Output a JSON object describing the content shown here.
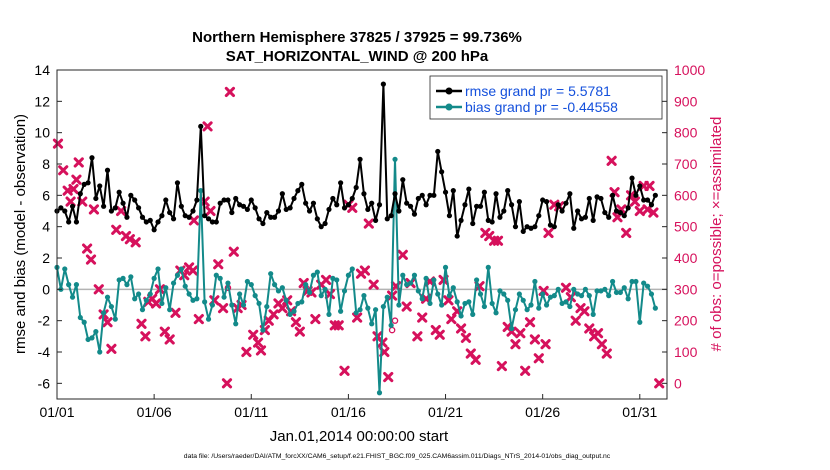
{
  "chart_data": {
    "type": "line",
    "title": "Northern Hemisphere 37825 / 37925 = 99.736%",
    "subtitle": "SAT_HORIZONTAL_WIND @ 200 hPa",
    "xlabel": "Jan.01,2014 00:00:00 start",
    "ylabel_left": "rmse and bias (model - observation)",
    "ylabel_right": "# of obs: o=possible; ×=assimilated",
    "footer": "data file: /Users/raeder/DAI/ATM_forcXX/CAM6_setup/f.e21.FHIST_BGC.f09_025.CAM6assim.011/Diags_NTrS_2014-01/obs_diag_output.nc",
    "x_tick_labels": [
      "01/01",
      "01/06",
      "01/11",
      "01/16",
      "01/21",
      "01/26",
      "01/31"
    ],
    "x_tick_days": [
      1,
      6,
      11,
      16,
      21,
      26,
      31
    ],
    "xlim": [
      1,
      32.4
    ],
    "ylim_left": [
      -7,
      14
    ],
    "yticks_left": [
      -6,
      -4,
      -2,
      0,
      2,
      4,
      6,
      8,
      10,
      12,
      14
    ],
    "ylim_right": [
      -50,
      1000
    ],
    "yticks_right": [
      0,
      100,
      200,
      300,
      400,
      500,
      600,
      700,
      800,
      900,
      1000
    ],
    "colors": {
      "rmse": "#000000",
      "bias": "#138a8a",
      "obs": "#d6115c",
      "zero_line": "#b3b3b3",
      "legend_text": "#1450dc"
    },
    "legend": [
      "rmse grand pr = 5.5781",
      "bias grand pr = -0.44558"
    ],
    "series": [
      {
        "name": "rmse grand pr = 5.5781",
        "values": [
          5.0,
          5.2,
          5.0,
          4.3,
          5.3,
          4.3,
          6.1,
          6.7,
          6.8,
          8.4,
          5.8,
          6.6,
          5.3,
          7.6,
          5.0,
          5.2,
          6.2,
          5.5,
          4.6,
          6.0,
          5.7,
          5.2,
          4.6,
          4.3,
          4.4,
          3.8,
          4.3,
          4.7,
          5.7,
          4.9,
          4.5,
          6.8,
          5.3,
          4.7,
          4.6,
          5.0,
          5.7,
          10.4,
          4.7,
          4.5,
          4.3,
          4.3,
          5.5,
          5.7,
          5.7,
          4.9,
          5.8,
          5.4,
          5.3,
          5.1,
          5.7,
          5.2,
          4.5,
          4.2,
          4.9,
          4.6,
          4.6,
          5.0,
          6.1,
          5.1,
          5.2,
          5.8,
          6.3,
          6.7,
          5.5,
          5.0,
          5.5,
          4.5,
          4.0,
          4.2,
          5.1,
          5.8,
          5.4,
          6.8,
          5.2,
          5.4,
          5.8,
          6.5,
          8.3,
          6.1,
          5.1,
          5.5,
          4.4,
          5.4,
          13.1,
          4.5,
          4.7,
          6.1,
          5.0,
          7.0,
          5.5,
          5.3,
          4.8,
          5.8,
          6.0,
          5.4,
          6.0,
          6.0,
          8.8,
          7.5,
          6.2,
          4.7,
          6.3,
          3.4,
          4.4,
          5.4,
          6.4,
          4.2,
          5.3,
          5.3,
          6.2,
          4.4,
          4.3,
          6.1,
          4.6,
          5.0,
          6.3,
          5.4,
          4.0,
          5.6,
          3.7,
          4.0,
          3.9,
          4.0,
          4.7,
          5.7,
          5.6,
          4.1,
          4.0,
          5.4,
          5.0,
          5.5,
          6.1,
          3.9,
          5.0,
          4.5,
          4.6,
          5.8,
          4.4,
          5.9,
          5.8,
          4.9,
          4.6,
          6.0,
          5.0,
          4.9,
          4.7,
          5.2,
          7.1,
          6.0,
          6.6,
          5.7,
          5.7,
          5.4,
          6.0
        ]
      },
      {
        "name": "bias grand pr = -0.44558",
        "values": [
          1.4,
          0.0,
          1.3,
          0.3,
          -0.5,
          0.3,
          -1.8,
          -2.1,
          -3.2,
          -3.1,
          -2.7,
          -4.0,
          -1.5,
          -0.5,
          -1.1,
          -1.9,
          0.6,
          0.7,
          0.3,
          0.8,
          -0.6,
          -0.3,
          -1.3,
          -0.7,
          -0.3,
          0.7,
          1.3,
          -0.9,
          0.1,
          -1.3,
          0.4,
          0.9,
          1.3,
          0.2,
          -0.3,
          -0.7,
          -0.6,
          6.3,
          -0.8,
          -1.9,
          -1.0,
          0.9,
          0.7,
          -0.5,
          0.4,
          -1.0,
          -2.2,
          -0.3,
          -1.0,
          0.5,
          0.3,
          -0.4,
          -0.9,
          -2.6,
          -1.1,
          1.0,
          0.3,
          -0.1,
          0.1,
          -0.7,
          -1.6,
          -1.4,
          -0.9,
          -0.8,
          0.3,
          -0.2,
          0.9,
          1.1,
          -0.4,
          0.0,
          -1.6,
          0.7,
          0.6,
          -1.4,
          -0.1,
          0.9,
          1.3,
          -1.5,
          -1.3,
          -0.4,
          -1.2,
          -2.2,
          -1.3,
          -6.6,
          -1.1,
          -0.5,
          -2.3,
          8.3,
          -1.0,
          0.9,
          0.3,
          0.4,
          0.9,
          -0.1,
          -0.6,
          0.7,
          -0.9,
          0.6,
          -0.3,
          -1.0,
          1.4,
          -0.4,
          0.1,
          -0.8,
          -1.7,
          -0.9,
          -0.8,
          -1.6,
          0.6,
          -0.3,
          -1.1,
          1.4,
          -0.9,
          -1.5,
          -0.1,
          -0.3,
          -0.7,
          -2.5,
          -1.3,
          -0.3,
          -0.7,
          -1.3,
          -1.0,
          0.5,
          -1.2,
          -0.3,
          -1.0,
          -0.5,
          -0.4,
          0.0,
          -0.9,
          -0.8,
          -1.1,
          0.0,
          -0.3,
          -0.4,
          0.0,
          -0.4,
          -1.6,
          -0.1,
          -0.1,
          0.0,
          -0.4,
          0.5,
          -0.2,
          -0.2,
          0.1,
          -0.6,
          0.5,
          0.5,
          -2.1,
          0.4,
          0.2,
          -0.3,
          -1.2
        ]
      },
      {
        "name": "# of obs assimilated",
        "points": [
          [
            1.05,
            765
          ],
          [
            1.32,
            680
          ],
          [
            1.55,
            615
          ],
          [
            1.7,
            580
          ],
          [
            1.85,
            620
          ],
          [
            2.0,
            650
          ],
          [
            2.12,
            705
          ],
          [
            2.3,
            580
          ],
          [
            2.55,
            430
          ],
          [
            2.75,
            395
          ],
          [
            2.9,
            555
          ],
          [
            3.15,
            300
          ],
          [
            3.4,
            220
          ],
          [
            3.6,
            195
          ],
          [
            3.8,
            110
          ],
          [
            4.05,
            490
          ],
          [
            4.3,
            550
          ],
          [
            4.55,
            470
          ],
          [
            4.75,
            460
          ],
          [
            5.05,
            450
          ],
          [
            5.35,
            190
          ],
          [
            5.55,
            150
          ],
          [
            5.7,
            260
          ],
          [
            5.9,
            270
          ],
          [
            6.1,
            255
          ],
          [
            6.3,
            300
          ],
          [
            6.55,
            165
          ],
          [
            6.8,
            140
          ],
          [
            7.1,
            225
          ],
          [
            7.35,
            360
          ],
          [
            7.55,
            345
          ],
          [
            7.8,
            370
          ],
          [
            8.0,
            360
          ],
          [
            8.05,
            520
          ],
          [
            8.3,
            205
          ],
          [
            8.6,
            580
          ],
          [
            8.75,
            820
          ],
          [
            8.9,
            550
          ],
          [
            9.1,
            265
          ],
          [
            9.3,
            380
          ],
          [
            9.55,
            240
          ],
          [
            9.75,
            0
          ],
          [
            9.9,
            930
          ],
          [
            10.1,
            420
          ],
          [
            10.3,
            240
          ],
          [
            10.5,
            250
          ],
          [
            10.75,
            100
          ],
          [
            11.1,
            155
          ],
          [
            11.35,
            130
          ],
          [
            11.5,
            105
          ],
          [
            11.7,
            170
          ],
          [
            11.9,
            200
          ],
          [
            12.15,
            220
          ],
          [
            12.4,
            255
          ],
          [
            12.6,
            240
          ],
          [
            12.85,
            265
          ],
          [
            13.05,
            230
          ],
          [
            13.3,
            195
          ],
          [
            13.5,
            165
          ],
          [
            13.7,
            320
          ],
          [
            13.9,
            295
          ],
          [
            14.1,
            290
          ],
          [
            14.3,
            205
          ],
          [
            14.6,
            315
          ],
          [
            14.85,
            330
          ],
          [
            15.05,
            285
          ],
          [
            15.3,
            185
          ],
          [
            15.5,
            185
          ],
          [
            15.8,
            40
          ],
          [
            16.0,
            570
          ],
          [
            16.2,
            560
          ],
          [
            16.45,
            210
          ],
          [
            16.65,
            350
          ],
          [
            16.85,
            360
          ],
          [
            17.05,
            510
          ],
          [
            17.3,
            315
          ],
          [
            17.5,
            150
          ],
          [
            17.75,
            130
          ],
          [
            17.85,
            100
          ],
          [
            18.05,
            20
          ],
          [
            18.25,
            280
          ],
          [
            18.45,
            310
          ],
          [
            18.8,
            410
          ],
          [
            19.0,
            245
          ],
          [
            19.2,
            320
          ],
          [
            19.55,
            150
          ],
          [
            19.8,
            210
          ],
          [
            20.0,
            270
          ],
          [
            20.2,
            325
          ],
          [
            20.5,
            170
          ],
          [
            20.7,
            155
          ],
          [
            20.9,
            330
          ],
          [
            21.15,
            265
          ],
          [
            21.3,
            205
          ],
          [
            21.6,
            230
          ],
          [
            21.8,
            175
          ],
          [
            22.05,
            145
          ],
          [
            22.3,
            95
          ],
          [
            22.55,
            75
          ],
          [
            22.75,
            310
          ],
          [
            23.05,
            480
          ],
          [
            23.25,
            470
          ],
          [
            23.5,
            455
          ],
          [
            23.7,
            455
          ],
          [
            23.9,
            55
          ],
          [
            24.2,
            180
          ],
          [
            24.4,
            165
          ],
          [
            24.6,
            125
          ],
          [
            24.85,
            160
          ],
          [
            25.1,
            40
          ],
          [
            25.35,
            195
          ],
          [
            25.6,
            140
          ],
          [
            25.8,
            80
          ],
          [
            26.05,
            295
          ],
          [
            26.15,
            125
          ],
          [
            26.3,
            480
          ],
          [
            26.6,
            570
          ],
          [
            26.85,
            565
          ],
          [
            27.2,
            305
          ],
          [
            27.45,
            275
          ],
          [
            27.7,
            200
          ],
          [
            27.95,
            240
          ],
          [
            28.15,
            230
          ],
          [
            28.4,
            175
          ],
          [
            28.65,
            150
          ],
          [
            28.85,
            160
          ],
          [
            29.05,
            125
          ],
          [
            29.3,
            95
          ],
          [
            29.55,
            710
          ],
          [
            29.7,
            610
          ],
          [
            29.85,
            530
          ],
          [
            30.05,
            555
          ],
          [
            30.3,
            480
          ],
          [
            30.55,
            600
          ],
          [
            30.75,
            580
          ],
          [
            31.0,
            550
          ],
          [
            31.2,
            630
          ],
          [
            31.4,
            555
          ],
          [
            31.5,
            630
          ],
          [
            31.7,
            545
          ],
          [
            32.0,
            0
          ]
        ]
      },
      {
        "name": "# of obs possible",
        "points": [
          [
            9.8,
            305
          ],
          [
            18.4,
            200
          ],
          [
            18.25,
            170
          ]
        ]
      }
    ]
  }
}
